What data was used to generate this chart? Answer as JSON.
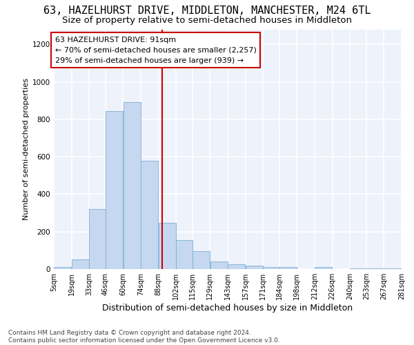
{
  "title": "63, HAZELHURST DRIVE, MIDDLETON, MANCHESTER, M24 6TL",
  "subtitle": "Size of property relative to semi-detached houses in Middleton",
  "xlabel": "Distribution of semi-detached houses by size in Middleton",
  "ylabel": "Number of semi-detached properties",
  "property_size": 91,
  "pct_smaller": 70,
  "pct_larger": 29,
  "count_smaller": "2,257",
  "count_larger": "939",
  "bar_color": "#c5d8f0",
  "bar_edge_color": "#7bafd4",
  "vline_color": "#cc0000",
  "annotation_box_color": "#cc0000",
  "bin_edges": [
    5,
    19,
    33,
    46,
    60,
    74,
    88,
    102,
    115,
    129,
    143,
    157,
    171,
    184,
    198,
    212,
    226,
    240,
    253,
    267,
    281
  ],
  "bin_counts": [
    10,
    50,
    320,
    845,
    890,
    580,
    245,
    155,
    95,
    40,
    25,
    20,
    10,
    10,
    0,
    10,
    0,
    5,
    5,
    5
  ],
  "tick_labels": [
    "5sqm",
    "19sqm",
    "33sqm",
    "46sqm",
    "60sqm",
    "74sqm",
    "88sqm",
    "102sqm",
    "115sqm",
    "129sqm",
    "143sqm",
    "157sqm",
    "171sqm",
    "184sqm",
    "198sqm",
    "212sqm",
    "226sqm",
    "240sqm",
    "253sqm",
    "267sqm",
    "281sqm"
  ],
  "ylim": [
    0,
    1280
  ],
  "yticks": [
    0,
    200,
    400,
    600,
    800,
    1000,
    1200
  ],
  "footnote": "Contains HM Land Registry data © Crown copyright and database right 2024.\nContains public sector information licensed under the Open Government Licence v3.0.",
  "background_color": "#eef2fb",
  "grid_color": "#ffffff",
  "title_fontsize": 11,
  "subtitle_fontsize": 9.5,
  "annotation_fontsize": 8,
  "footnote_fontsize": 6.5,
  "ylabel_fontsize": 8,
  "xlabel_fontsize": 9,
  "tick_fontsize": 7
}
